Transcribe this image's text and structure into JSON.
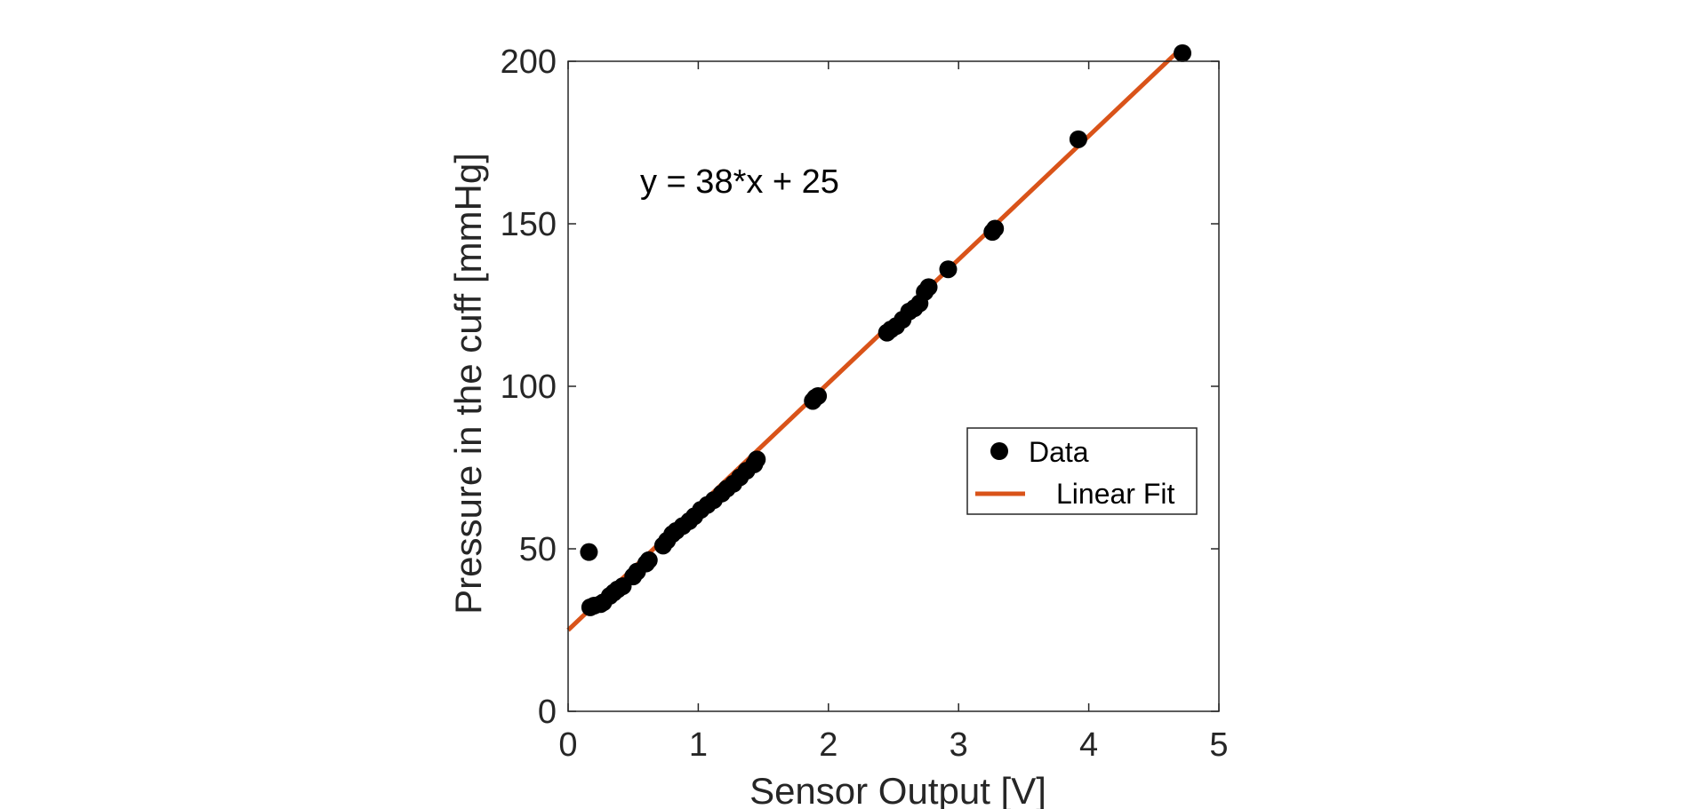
{
  "chart_data": {
    "type": "scatter",
    "title": "",
    "xlabel": "Sensor Output [V]",
    "ylabel": "Pressure in the cuff [mmHg]",
    "xlim": [
      0,
      5
    ],
    "ylim": [
      0,
      200
    ],
    "xticks": [
      "0",
      "1",
      "2",
      "3",
      "4",
      "5"
    ],
    "yticks": [
      "0",
      "50",
      "100",
      "150",
      "200"
    ],
    "grid": false,
    "legend_position": "right",
    "annotation": "y = 38*x + 25",
    "colors": {
      "data": "#000000",
      "fit": "#D95319",
      "axes": "#262626"
    },
    "series": [
      {
        "name": "Data",
        "type": "scatter",
        "points": [
          [
            0.16,
            49
          ],
          [
            0.17,
            32
          ],
          [
            0.2,
            32.5
          ],
          [
            0.25,
            33
          ],
          [
            0.27,
            33.5
          ],
          [
            0.32,
            35.5
          ],
          [
            0.35,
            36.5
          ],
          [
            0.38,
            37.5
          ],
          [
            0.42,
            38.5
          ],
          [
            0.5,
            41.5
          ],
          [
            0.53,
            43
          ],
          [
            0.6,
            45.5
          ],
          [
            0.62,
            46.5
          ],
          [
            0.73,
            51
          ],
          [
            0.76,
            52.5
          ],
          [
            0.8,
            54.5
          ],
          [
            0.83,
            55.5
          ],
          [
            0.88,
            57
          ],
          [
            0.93,
            58.5
          ],
          [
            0.97,
            60
          ],
          [
            1.02,
            62
          ],
          [
            1.07,
            63.5
          ],
          [
            1.12,
            65
          ],
          [
            1.18,
            67
          ],
          [
            1.22,
            68.5
          ],
          [
            1.27,
            70
          ],
          [
            1.32,
            72
          ],
          [
            1.37,
            74
          ],
          [
            1.43,
            76
          ],
          [
            1.45,
            77.5
          ],
          [
            1.88,
            95.5
          ],
          [
            1.9,
            96.5
          ],
          [
            1.92,
            97
          ],
          [
            2.45,
            116.5
          ],
          [
            2.48,
            117.5
          ],
          [
            2.52,
            118.5
          ],
          [
            2.57,
            120.5
          ],
          [
            2.62,
            123
          ],
          [
            2.66,
            124
          ],
          [
            2.7,
            125.5
          ],
          [
            2.74,
            129
          ],
          [
            2.77,
            130.5
          ],
          [
            2.92,
            136
          ],
          [
            3.26,
            147.5
          ],
          [
            3.28,
            148.5
          ],
          [
            3.92,
            176
          ],
          [
            4.72,
            202.5
          ]
        ]
      },
      {
        "name": "Linear Fit",
        "type": "line",
        "slope": 38,
        "intercept": 25,
        "x_range": [
          0,
          4.72
        ]
      }
    ]
  }
}
